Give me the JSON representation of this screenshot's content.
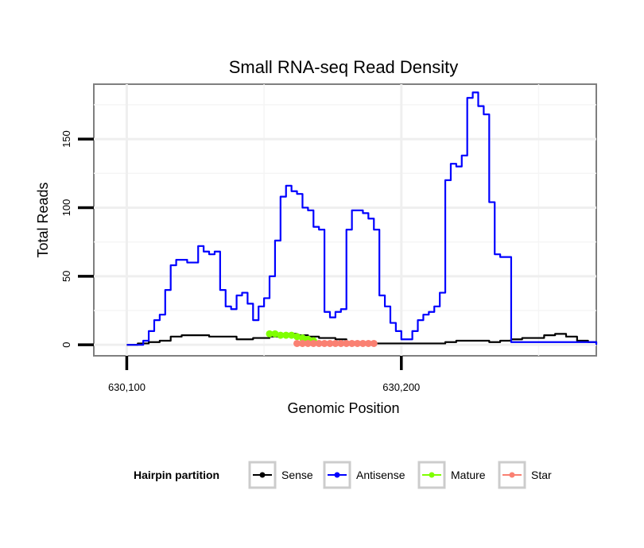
{
  "chart_data": {
    "type": "line",
    "title": "Small RNA-seq Read Density",
    "xlabel": "Genomic Position",
    "ylabel": "Total Reads",
    "xlim": [
      630088,
      630271
    ],
    "ylim": [
      -8,
      190
    ],
    "x_ticks": [
      630100,
      630200
    ],
    "x_tick_labels": [
      "630,100",
      "630,200"
    ],
    "y_ticks": [
      0,
      50,
      100,
      150
    ],
    "y_tick_labels": [
      "0",
      "50",
      "100",
      "150"
    ],
    "grid": true,
    "legend_title": "Hairpin partition",
    "legend_position": "bottom",
    "series": [
      {
        "name": "Sense",
        "color": "#000000",
        "marker": "line",
        "x": [
          630100,
          630104,
          630108,
          630112,
          630116,
          630120,
          630126,
          630130,
          630140,
          630146,
          630152,
          630156,
          630158,
          630162,
          630166,
          630170,
          630176,
          630180,
          630184,
          630186,
          630188,
          630192,
          630200,
          630202,
          630206,
          630210,
          630216,
          630220,
          630224,
          630228,
          630232,
          630236,
          630240,
          630244,
          630248,
          630252,
          630256,
          630260,
          630264,
          630268,
          630271
        ],
        "y": [
          0,
          1,
          2,
          3,
          6,
          7,
          7,
          6,
          4,
          5,
          6,
          7,
          8,
          7,
          6,
          5,
          4,
          2,
          1,
          1,
          1,
          1,
          1,
          1,
          1,
          1,
          2,
          3,
          3,
          3,
          2,
          3,
          4,
          5,
          5,
          7,
          8,
          6,
          3,
          2,
          1
        ]
      },
      {
        "name": "Antisense",
        "color": "#0000ff",
        "marker": "line",
        "x": [
          630100,
          630104,
          630106,
          630108,
          630110,
          630112,
          630114,
          630116,
          630118,
          630120,
          630122,
          630124,
          630126,
          630128,
          630130,
          630132,
          630134,
          630136,
          630138,
          630140,
          630142,
          630144,
          630146,
          630148,
          630150,
          630152,
          630154,
          630156,
          630158,
          630160,
          630162,
          630164,
          630166,
          630168,
          630170,
          630172,
          630174,
          630176,
          630178,
          630180,
          630182,
          630184,
          630186,
          630188,
          630190,
          630192,
          630194,
          630196,
          630198,
          630200,
          630202,
          630204,
          630206,
          630208,
          630210,
          630212,
          630214,
          630216,
          630218,
          630220,
          630222,
          630224,
          630226,
          630228,
          630230,
          630232,
          630234,
          630236,
          630240,
          630248,
          630256,
          630264,
          630271
        ],
        "y": [
          0,
          0,
          3,
          10,
          18,
          22,
          40,
          58,
          62,
          62,
          60,
          60,
          72,
          68,
          66,
          68,
          40,
          28,
          26,
          36,
          38,
          30,
          18,
          28,
          34,
          50,
          76,
          108,
          116,
          112,
          110,
          100,
          98,
          86,
          84,
          24,
          20,
          24,
          26,
          84,
          98,
          98,
          96,
          92,
          84,
          36,
          28,
          16,
          10,
          4,
          4,
          10,
          18,
          22,
          24,
          28,
          38,
          120,
          132,
          130,
          138,
          180,
          184,
          174,
          168,
          104,
          66,
          64,
          2,
          2,
          2,
          2,
          0
        ]
      },
      {
        "name": "Mature",
        "color": "#7fff00",
        "marker": "point",
        "x": [
          630152,
          630154,
          630156,
          630158,
          630160,
          630162,
          630164,
          630166,
          630168
        ],
        "y": [
          8,
          8,
          7,
          7,
          7,
          6,
          5,
          4,
          3
        ]
      },
      {
        "name": "Star",
        "color": "#fa8072",
        "marker": "point",
        "x": [
          630162,
          630164,
          630166,
          630168,
          630170,
          630172,
          630174,
          630176,
          630178,
          630180,
          630182,
          630184,
          630186,
          630188,
          630190
        ],
        "y": [
          1,
          1,
          1,
          1,
          1,
          1,
          1,
          1,
          1,
          1,
          1,
          1,
          1,
          1,
          1
        ]
      }
    ]
  }
}
